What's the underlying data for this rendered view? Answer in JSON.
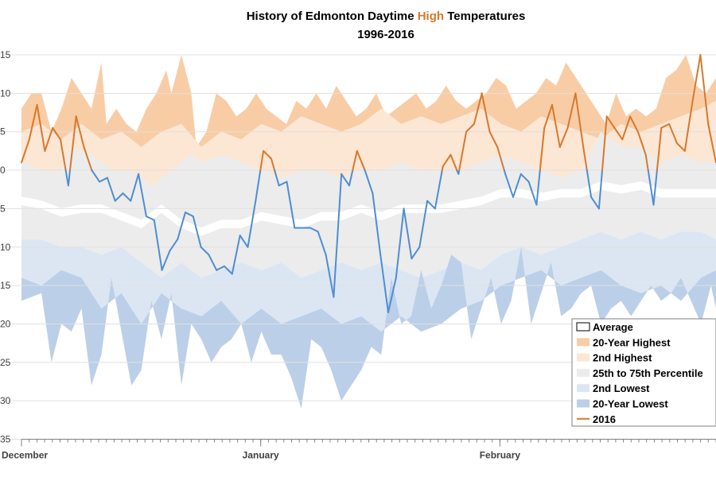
{
  "chart_data": {
    "type": "area",
    "title": {
      "prefix": "History of Edmonton Daytime ",
      "highlight": "High",
      "suffix": " Temperatures",
      "line2": "1996-2016"
    },
    "ylim": [
      -35,
      17
    ],
    "y_ticks": [
      15,
      10,
      5,
      0,
      -5,
      -10,
      -15,
      -20,
      -25,
      -30,
      -35
    ],
    "y_tick_labels": [
      "15",
      "10",
      "5",
      "0",
      "5",
      "10",
      "15",
      "20",
      "25",
      "30",
      "35"
    ],
    "x_range": [
      0,
      90
    ],
    "months": [
      {
        "label": "December",
        "day": 0
      },
      {
        "label": "January",
        "day": 31
      },
      {
        "label": "February",
        "day": 62
      }
    ],
    "colors": {
      "highest": "#f8cda5",
      "second_highest": "#fce6d4",
      "iqr": "#ececec",
      "second_lowest": "#dce6f3",
      "lowest": "#bccfe8",
      "cold_line": "#4e8dd2",
      "warm_line": "#d8782b",
      "grid": "#e0e0e0"
    },
    "legend": [
      {
        "key": "average",
        "label": "Average"
      },
      {
        "key": "highest",
        "label": "20-Year Highest"
      },
      {
        "key": "second_highest",
        "label": "2nd Highest"
      },
      {
        "key": "iqr",
        "label": "25th to 75th Percentile"
      },
      {
        "key": "second_lowest",
        "label": "2nd Lowest"
      },
      {
        "key": "lowest",
        "label": "20-Year Lowest"
      },
      {
        "key": "year2016",
        "label": "2016"
      }
    ],
    "series_knots": {
      "highest": [
        [
          0,
          8
        ],
        [
          2,
          10
        ],
        [
          4,
          10
        ],
        [
          6,
          5
        ],
        [
          8,
          8
        ],
        [
          10,
          12
        ],
        [
          12,
          10
        ],
        [
          14,
          8
        ],
        [
          16,
          14
        ],
        [
          17,
          6
        ],
        [
          19,
          8
        ],
        [
          21,
          6
        ],
        [
          23,
          5
        ],
        [
          25,
          8
        ],
        [
          27,
          10
        ],
        [
          29,
          13
        ],
        [
          30,
          10
        ],
        [
          32,
          15
        ],
        [
          34,
          10
        ],
        [
          35,
          3
        ],
        [
          37,
          5
        ],
        [
          39,
          10
        ],
        [
          41,
          9
        ],
        [
          43,
          7
        ],
        [
          45,
          8
        ],
        [
          47,
          10
        ],
        [
          49,
          8
        ],
        [
          51,
          7
        ],
        [
          53,
          6
        ],
        [
          55,
          9
        ],
        [
          57,
          8
        ],
        [
          59,
          10
        ],
        [
          61,
          8
        ],
        [
          63,
          11
        ],
        [
          65,
          9
        ],
        [
          67,
          7
        ],
        [
          69,
          8
        ],
        [
          71,
          10
        ],
        [
          73,
          7
        ],
        [
          75,
          8
        ],
        [
          77,
          9
        ],
        [
          79,
          10
        ],
        [
          81,
          8
        ],
        [
          83,
          9
        ],
        [
          85,
          11
        ],
        [
          87,
          9
        ],
        [
          89,
          8
        ],
        [
          91,
          9
        ],
        [
          93,
          10
        ],
        [
          95,
          12
        ],
        [
          97,
          11
        ],
        [
          99,
          8
        ],
        [
          101,
          9
        ],
        [
          103,
          10
        ],
        [
          105,
          12
        ],
        [
          107,
          11
        ],
        [
          109,
          14
        ],
        [
          111,
          12
        ],
        [
          113,
          10
        ],
        [
          115,
          8
        ],
        [
          117,
          6
        ],
        [
          119,
          10
        ],
        [
          121,
          7
        ],
        [
          123,
          8
        ],
        [
          125,
          7
        ],
        [
          127,
          8
        ],
        [
          129,
          12
        ],
        [
          131,
          13
        ],
        [
          133,
          15
        ],
        [
          135,
          11
        ],
        [
          137,
          10
        ],
        [
          139,
          12
        ]
      ],
      "second_highest": [
        [
          0,
          5
        ],
        [
          4,
          6
        ],
        [
          8,
          4
        ],
        [
          12,
          6
        ],
        [
          16,
          4
        ],
        [
          20,
          5
        ],
        [
          24,
          3
        ],
        [
          28,
          5
        ],
        [
          32,
          6
        ],
        [
          36,
          3
        ],
        [
          40,
          5
        ],
        [
          44,
          4
        ],
        [
          48,
          6
        ],
        [
          52,
          5
        ],
        [
          56,
          7
        ],
        [
          60,
          6
        ],
        [
          64,
          5
        ],
        [
          68,
          6
        ],
        [
          72,
          8
        ],
        [
          76,
          6
        ],
        [
          80,
          7
        ],
        [
          84,
          6
        ],
        [
          88,
          7
        ],
        [
          92,
          8
        ],
        [
          96,
          6
        ],
        [
          100,
          5
        ],
        [
          104,
          7
        ],
        [
          108,
          6
        ],
        [
          112,
          5
        ],
        [
          116,
          4
        ],
        [
          120,
          6
        ],
        [
          124,
          5
        ],
        [
          128,
          6
        ],
        [
          132,
          7
        ],
        [
          136,
          8
        ],
        [
          139,
          9
        ]
      ],
      "iqr_top": [
        [
          0,
          1
        ],
        [
          4,
          0
        ],
        [
          8,
          0
        ],
        [
          10,
          3
        ],
        [
          14,
          2
        ],
        [
          18,
          0
        ],
        [
          22,
          0
        ],
        [
          26,
          -2
        ],
        [
          30,
          0
        ],
        [
          34,
          2
        ],
        [
          36,
          1
        ],
        [
          40,
          2
        ],
        [
          44,
          1
        ],
        [
          48,
          0
        ],
        [
          52,
          -1
        ],
        [
          56,
          0
        ],
        [
          60,
          0
        ],
        [
          64,
          -1
        ],
        [
          68,
          0
        ],
        [
          72,
          0
        ],
        [
          76,
          1
        ],
        [
          80,
          0
        ],
        [
          84,
          0
        ],
        [
          88,
          0
        ],
        [
          92,
          1
        ],
        [
          96,
          2
        ],
        [
          100,
          1
        ],
        [
          104,
          0
        ],
        [
          108,
          -1
        ],
        [
          112,
          0
        ],
        [
          116,
          5
        ],
        [
          120,
          3
        ],
        [
          124,
          3
        ],
        [
          128,
          1
        ],
        [
          132,
          2
        ],
        [
          136,
          1
        ],
        [
          139,
          1
        ]
      ],
      "iqr_bottom": [
        [
          0,
          -9
        ],
        [
          4,
          -9
        ],
        [
          8,
          -10
        ],
        [
          12,
          -10
        ],
        [
          16,
          -11
        ],
        [
          20,
          -10
        ],
        [
          24,
          -12
        ],
        [
          28,
          -14
        ],
        [
          32,
          -12
        ],
        [
          36,
          -14
        ],
        [
          40,
          -13
        ],
        [
          44,
          -12
        ],
        [
          48,
          -13
        ],
        [
          52,
          -12
        ],
        [
          56,
          -14
        ],
        [
          60,
          -13
        ],
        [
          64,
          -12
        ],
        [
          68,
          -13
        ],
        [
          72,
          -12
        ],
        [
          76,
          -13
        ],
        [
          80,
          -14
        ],
        [
          84,
          -13
        ],
        [
          88,
          -12
        ],
        [
          92,
          -13
        ],
        [
          96,
          -11
        ],
        [
          100,
          -10
        ],
        [
          104,
          -11
        ],
        [
          108,
          -10
        ],
        [
          112,
          -9
        ],
        [
          116,
          -8
        ],
        [
          120,
          -9
        ],
        [
          124,
          -8
        ],
        [
          128,
          -9
        ],
        [
          132,
          -8
        ],
        [
          136,
          -8
        ],
        [
          139,
          -9
        ]
      ],
      "second_lowest": [
        [
          0,
          -14
        ],
        [
          4,
          -15
        ],
        [
          8,
          -13
        ],
        [
          12,
          -14
        ],
        [
          16,
          -18
        ],
        [
          20,
          -16
        ],
        [
          24,
          -20
        ],
        [
          28,
          -16
        ],
        [
          32,
          -18
        ],
        [
          36,
          -19
        ],
        [
          40,
          -17
        ],
        [
          44,
          -20
        ],
        [
          48,
          -18
        ],
        [
          52,
          -20
        ],
        [
          56,
          -19
        ],
        [
          60,
          -18
        ],
        [
          64,
          -20
        ],
        [
          68,
          -19
        ],
        [
          72,
          -21
        ],
        [
          76,
          -19
        ],
        [
          80,
          -21
        ],
        [
          84,
          -20
        ],
        [
          88,
          -18
        ],
        [
          92,
          -17
        ],
        [
          96,
          -15
        ],
        [
          100,
          -14
        ],
        [
          104,
          -13
        ],
        [
          108,
          -15
        ],
        [
          112,
          -14
        ],
        [
          116,
          -13
        ],
        [
          120,
          -15
        ],
        [
          124,
          -16
        ],
        [
          128,
          -15
        ],
        [
          132,
          -17
        ],
        [
          136,
          -14
        ],
        [
          139,
          -13
        ]
      ],
      "lowest": [
        [
          0,
          -17
        ],
        [
          4,
          -16
        ],
        [
          6,
          -25
        ],
        [
          8,
          -20
        ],
        [
          10,
          -21
        ],
        [
          12,
          -18
        ],
        [
          14,
          -28
        ],
        [
          16,
          -24
        ],
        [
          18,
          -14
        ],
        [
          20,
          -21
        ],
        [
          22,
          -28
        ],
        [
          24,
          -26
        ],
        [
          26,
          -17
        ],
        [
          28,
          -22
        ],
        [
          30,
          -16
        ],
        [
          32,
          -28
        ],
        [
          34,
          -20
        ],
        [
          36,
          -22
        ],
        [
          38,
          -25
        ],
        [
          40,
          -23
        ],
        [
          42,
          -22
        ],
        [
          44,
          -20
        ],
        [
          46,
          -25
        ],
        [
          48,
          -21
        ],
        [
          50,
          -24
        ],
        [
          52,
          -24
        ],
        [
          54,
          -27
        ],
        [
          56,
          -31
        ],
        [
          58,
          -22
        ],
        [
          60,
          -23
        ],
        [
          62,
          -26
        ],
        [
          64,
          -30
        ],
        [
          66,
          -28
        ],
        [
          68,
          -26
        ],
        [
          70,
          -23
        ],
        [
          72,
          -24
        ],
        [
          74,
          -14
        ],
        [
          76,
          -20
        ],
        [
          78,
          -19
        ],
        [
          80,
          -13
        ],
        [
          82,
          -18
        ],
        [
          84,
          -15
        ],
        [
          86,
          -11
        ],
        [
          88,
          -12
        ],
        [
          90,
          -22
        ],
        [
          92,
          -18
        ],
        [
          94,
          -14
        ],
        [
          96,
          -20
        ],
        [
          98,
          -17
        ],
        [
          100,
          -10
        ],
        [
          102,
          -20
        ],
        [
          104,
          -16
        ],
        [
          106,
          -12
        ],
        [
          108,
          -19
        ],
        [
          110,
          -18
        ],
        [
          112,
          -16
        ],
        [
          114,
          -15
        ],
        [
          116,
          -20
        ],
        [
          118,
          -18
        ],
        [
          120,
          -17
        ],
        [
          122,
          -19
        ],
        [
          124,
          -17
        ],
        [
          126,
          -15
        ],
        [
          128,
          -17
        ],
        [
          130,
          -16
        ],
        [
          132,
          -14
        ],
        [
          134,
          -17
        ],
        [
          136,
          -20
        ],
        [
          138,
          -15
        ],
        [
          139,
          -18
        ]
      ],
      "average": [
        [
          0,
          -4
        ],
        [
          4,
          -4.5
        ],
        [
          8,
          -5.5
        ],
        [
          12,
          -5
        ],
        [
          16,
          -5
        ],
        [
          20,
          -6
        ],
        [
          24,
          -7
        ],
        [
          28,
          -5
        ],
        [
          32,
          -7
        ],
        [
          36,
          -8
        ],
        [
          40,
          -7
        ],
        [
          44,
          -7
        ],
        [
          48,
          -6
        ],
        [
          52,
          -6.5
        ],
        [
          56,
          -7
        ],
        [
          60,
          -6
        ],
        [
          64,
          -6
        ],
        [
          68,
          -5
        ],
        [
          72,
          -6
        ],
        [
          76,
          -5
        ],
        [
          80,
          -5
        ],
        [
          84,
          -5
        ],
        [
          88,
          -4.5
        ],
        [
          92,
          -4
        ],
        [
          96,
          -3
        ],
        [
          100,
          -3
        ],
        [
          104,
          -3.5
        ],
        [
          108,
          -3
        ],
        [
          112,
          -3
        ],
        [
          116,
          -2
        ],
        [
          120,
          -2.5
        ],
        [
          124,
          -2
        ],
        [
          128,
          -3
        ],
        [
          132,
          -3
        ],
        [
          136,
          -3
        ],
        [
          139,
          -3
        ]
      ]
    },
    "year2016": [
      1,
      4,
      8.5,
      2.5,
      5.5,
      4,
      -2,
      7,
      3,
      0,
      -1.5,
      -1,
      -4,
      -3,
      -4,
      -0.5,
      -6,
      -6.5,
      -13,
      -10.5,
      -9,
      -5.5,
      -6,
      -10,
      -11,
      -13,
      -12.5,
      -13.5,
      -8.5,
      -10,
      -4,
      2.5,
      1.5,
      -2,
      -1.5,
      -7.5,
      -7.5,
      -7.5,
      -8,
      -11,
      -16.5,
      -0.5,
      -2,
      2.5,
      0,
      -3,
      -11,
      -18.5,
      -14,
      -5,
      -11.5,
      -10,
      -4,
      -5,
      0.5,
      2,
      -0.5,
      5,
      6,
      10,
      5,
      3,
      -0.5,
      -3.5,
      -0.5,
      -1.5,
      -4.5,
      5.5,
      8.5,
      3,
      5.5,
      10,
      3,
      -3.5,
      -5,
      7,
      5.5,
      4,
      7,
      5,
      2,
      -4.5,
      5.5,
      6,
      3.5,
      2.5,
      9,
      15,
      6,
      1
    ]
  }
}
